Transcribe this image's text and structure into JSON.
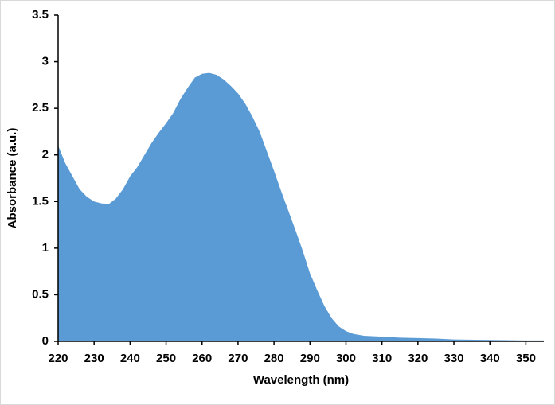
{
  "chart_data": {
    "type": "area",
    "x_label": "Wavelength (nm)",
    "y_label": "Absorbance (a.u.)",
    "x": [
      220,
      222,
      224,
      226,
      228,
      230,
      232,
      234,
      236,
      238,
      240,
      242,
      244,
      246,
      248,
      250,
      252,
      254,
      256,
      258,
      260,
      262,
      264,
      266,
      268,
      270,
      272,
      274,
      276,
      278,
      280,
      282,
      284,
      286,
      288,
      290,
      292,
      294,
      296,
      298,
      300,
      302,
      305,
      310,
      315,
      320,
      325,
      330,
      340,
      350,
      355
    ],
    "series": [
      {
        "name": "Absorbance",
        "color": "#5b9bd5",
        "values": [
          2.1,
          1.91,
          1.77,
          1.63,
          1.55,
          1.5,
          1.48,
          1.47,
          1.53,
          1.63,
          1.77,
          1.87,
          2.0,
          2.13,
          2.24,
          2.34,
          2.45,
          2.6,
          2.72,
          2.83,
          2.87,
          2.88,
          2.86,
          2.81,
          2.74,
          2.66,
          2.55,
          2.41,
          2.25,
          2.04,
          1.83,
          1.61,
          1.4,
          1.19,
          0.97,
          0.73,
          0.55,
          0.38,
          0.25,
          0.16,
          0.11,
          0.08,
          0.06,
          0.05,
          0.04,
          0.035,
          0.03,
          0.02,
          0.015,
          0.01,
          0.01
        ]
      }
    ],
    "xlim": [
      220,
      355
    ],
    "xticks": [
      220,
      230,
      240,
      250,
      260,
      270,
      280,
      290,
      300,
      310,
      320,
      330,
      340,
      350
    ],
    "ylim": [
      0,
      3.5
    ],
    "yticks": [
      0,
      0.5,
      1,
      1.5,
      2,
      2.5,
      3,
      3.5
    ]
  }
}
